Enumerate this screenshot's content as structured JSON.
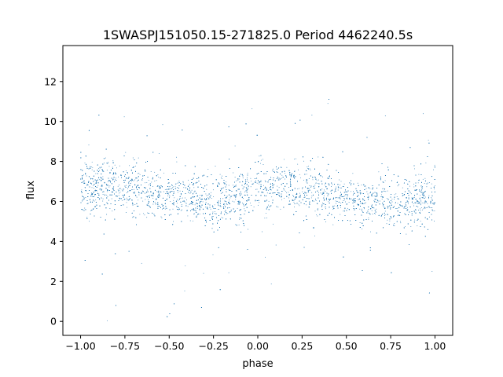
{
  "chart_data": {
    "type": "scatter",
    "title": "1SWASPJ151050.15-271825.0 Period 4462240.5s",
    "xlabel": "phase",
    "ylabel": "flux",
    "xlim": [
      -1.1,
      1.1
    ],
    "ylim": [
      -0.7,
      13.8
    ],
    "xticks": [
      -1.0,
      -0.75,
      -0.5,
      -0.25,
      0.0,
      0.25,
      0.5,
      0.75,
      1.0
    ],
    "xtick_labels": [
      "−1.00",
      "−0.75",
      "−0.50",
      "−0.25",
      "0.00",
      "0.25",
      "0.50",
      "0.75",
      "1.00"
    ],
    "yticks": [
      0,
      2,
      4,
      6,
      8,
      10,
      12
    ],
    "ytick_labels": [
      "0",
      "2",
      "4",
      "6",
      "8",
      "10",
      "12"
    ],
    "grid": false,
    "marker_color": "#1f77b4",
    "series": [
      {
        "x": [
          -1.0,
          -0.95,
          -0.9,
          -0.85,
          -0.8,
          -0.75,
          -0.7,
          -0.65,
          -0.6,
          -0.55,
          -0.5,
          -0.45,
          -0.4,
          -0.35,
          -0.3,
          -0.25,
          -0.2,
          -0.15,
          -0.1,
          -0.05,
          0.0,
          0.05,
          0.1,
          0.15,
          0.2,
          0.25,
          0.3,
          0.35,
          0.4,
          0.45,
          0.5,
          0.55,
          0.6,
          0.65,
          0.7,
          0.75,
          0.8,
          0.85,
          0.9,
          0.95,
          1.0
        ],
        "y": [
          7.2,
          6.5,
          6.8,
          6.7,
          6.9,
          6.6,
          6.8,
          6.5,
          6.4,
          6.3,
          6.2,
          6.3,
          6.2,
          6.0,
          6.1,
          6.0,
          6.2,
          6.2,
          6.3,
          6.5,
          6.9,
          6.5,
          6.6,
          6.8,
          6.7,
          6.5,
          6.6,
          6.4,
          6.4,
          6.3,
          6.2,
          6.1,
          6.0,
          6.0,
          6.1,
          6.0,
          5.9,
          6.0,
          6.1,
          6.1,
          6.3
        ],
        "scatter_y": [
          1.0,
          1.0,
          0.9,
          0.9,
          0.9,
          0.9,
          1.3,
          1.0,
          0.8,
          0.8,
          0.8,
          0.8,
          0.8,
          0.9,
          0.9,
          1.0,
          0.9,
          0.9,
          0.9,
          1.0,
          1.1,
          1.0,
          0.9,
          0.9,
          0.9,
          1.0,
          1.2,
          1.0,
          0.8,
          0.8,
          0.8,
          0.8,
          0.8,
          0.9,
          1.0,
          0.9,
          1.0,
          1.1,
          1.0,
          1.0,
          1.2
        ]
      }
    ]
  }
}
